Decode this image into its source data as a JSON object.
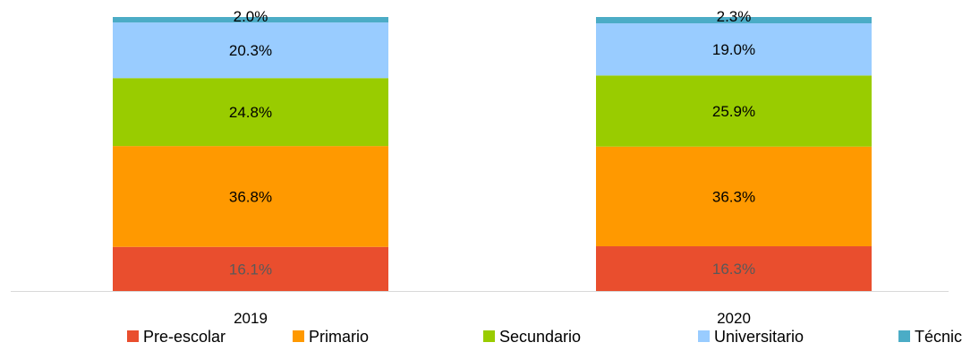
{
  "chart_data": {
    "type": "bar",
    "stacked": true,
    "value_unit": "%",
    "categories": [
      "2019",
      "2020"
    ],
    "series": [
      {
        "name": "Pre-escolar",
        "color": "#e94e2e",
        "label_color": "#595959",
        "values": [
          16.1,
          16.3
        ],
        "labels": [
          "16.1%",
          "16.3%"
        ]
      },
      {
        "name": "Primario",
        "color": "#ff9900",
        "label_color": "#000000",
        "values": [
          36.8,
          36.3
        ],
        "labels": [
          "36.8%",
          "36.3%"
        ]
      },
      {
        "name": "Secundario",
        "color": "#99cc00",
        "label_color": "#000000",
        "values": [
          24.8,
          25.9
        ],
        "labels": [
          "24.8%",
          "25.9%"
        ]
      },
      {
        "name": "Universitario",
        "color": "#99ccff",
        "label_color": "#000000",
        "values": [
          20.3,
          19.0
        ],
        "labels": [
          "20.3%",
          "19.0%"
        ]
      },
      {
        "name": "Técnico",
        "color": "#4bacc6",
        "label_color": "#000000",
        "values": [
          2.0,
          2.3
        ],
        "labels": [
          "2.0%",
          "2.3%"
        ]
      }
    ],
    "ylim": [
      0,
      100
    ],
    "title": "",
    "xlabel": "",
    "ylabel": "",
    "legend_position": "bottom",
    "grid": false
  }
}
